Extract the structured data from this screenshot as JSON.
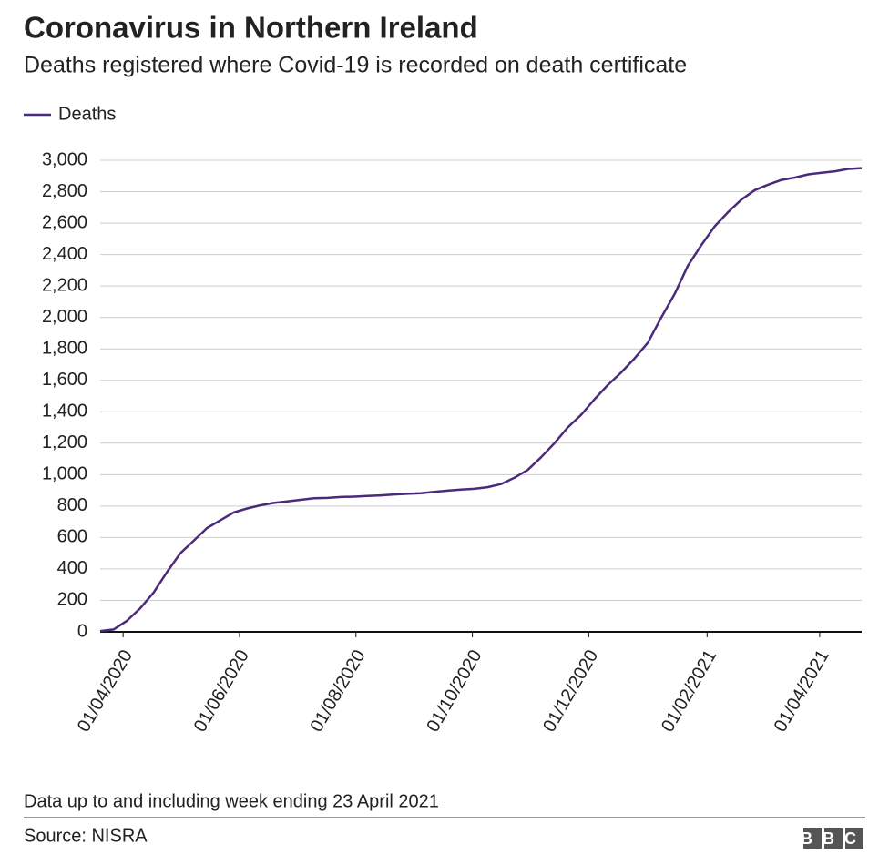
{
  "chart_data": {
    "type": "line",
    "title": "Coronavirus in Northern Ireland",
    "subtitle": "Deaths registered where Covid-19 is recorded on death certificate",
    "note": "Data up to and including week ending 23 April 2021",
    "source": "Source: NISRA",
    "logo": "BBC",
    "x": [
      "20/03/2020",
      "27/03/2020",
      "03/04/2020",
      "10/04/2020",
      "17/04/2020",
      "24/04/2020",
      "01/05/2020",
      "08/05/2020",
      "15/05/2020",
      "22/05/2020",
      "29/05/2020",
      "05/06/2020",
      "12/06/2020",
      "19/06/2020",
      "26/06/2020",
      "03/07/2020",
      "10/07/2020",
      "17/07/2020",
      "24/07/2020",
      "31/07/2020",
      "07/08/2020",
      "14/08/2020",
      "21/08/2020",
      "28/08/2020",
      "04/09/2020",
      "11/09/2020",
      "18/09/2020",
      "25/09/2020",
      "02/10/2020",
      "09/10/2020",
      "16/10/2020",
      "23/10/2020",
      "30/10/2020",
      "06/11/2020",
      "13/11/2020",
      "20/11/2020",
      "27/11/2020",
      "04/12/2020",
      "11/12/2020",
      "18/12/2020",
      "25/12/2020",
      "01/01/2021",
      "08/01/2021",
      "15/01/2021",
      "22/01/2021",
      "29/01/2021",
      "05/02/2021",
      "12/02/2021",
      "19/02/2021",
      "26/02/2021",
      "05/03/2021",
      "12/03/2021",
      "19/03/2021",
      "26/03/2021",
      "02/04/2021",
      "09/04/2021",
      "16/04/2021",
      "23/04/2021"
    ],
    "series": [
      {
        "name": "Deaths",
        "color": "#4b2a7b",
        "values": [
          5,
          15,
          70,
          150,
          250,
          380,
          500,
          580,
          660,
          710,
          760,
          785,
          805,
          820,
          830,
          840,
          850,
          852,
          858,
          860,
          864,
          868,
          874,
          878,
          882,
          890,
          898,
          905,
          910,
          920,
          940,
          980,
          1030,
          1110,
          1200,
          1300,
          1380,
          1480,
          1570,
          1650,
          1740,
          1840,
          2000,
          2150,
          2330,
          2460,
          2580,
          2670,
          2750,
          2810,
          2845,
          2875,
          2890,
          2910,
          2920,
          2930,
          2945,
          2950
        ]
      }
    ],
    "xlim": [
      "20/03/2020",
      "23/04/2021"
    ],
    "xticks": [
      "01/04/2020",
      "01/06/2020",
      "01/08/2020",
      "01/10/2020",
      "01/12/2020",
      "01/02/2021",
      "01/04/2021"
    ],
    "ylim": [
      0,
      3000
    ],
    "yticks": [
      0,
      200,
      400,
      600,
      800,
      {
        "value": 1000,
        "label": "1,000"
      },
      {
        "value": 1200,
        "label": "1,200"
      },
      {
        "value": 1400,
        "label": "1,400"
      },
      {
        "value": 1600,
        "label": "1,600"
      },
      {
        "value": 1800,
        "label": "1,800"
      },
      {
        "value": 2000,
        "label": "2,000"
      },
      {
        "value": 2200,
        "label": "2,200"
      },
      {
        "value": 2400,
        "label": "2,400"
      },
      {
        "value": 2600,
        "label": "2,600"
      },
      {
        "value": 2800,
        "label": "2,800"
      },
      {
        "value": 3000,
        "label": "3,000"
      }
    ],
    "grid": true
  }
}
